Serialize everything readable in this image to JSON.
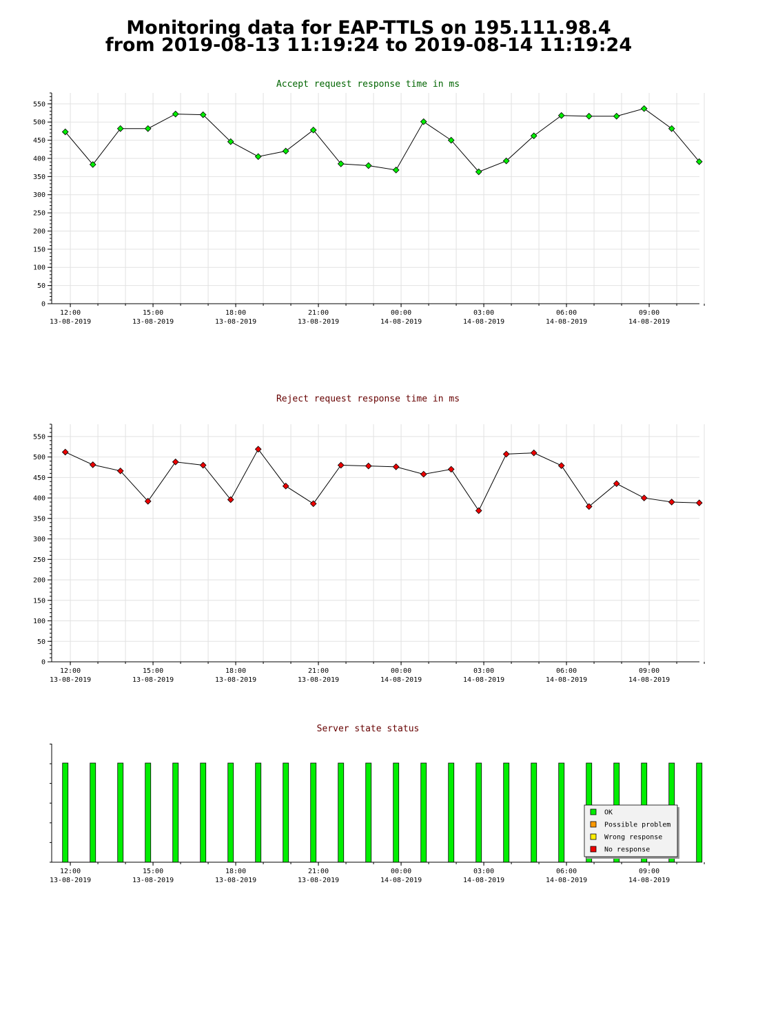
{
  "page": {
    "title_line1": "Monitoring data for EAP-TTLS on 195.111.98.4",
    "title_line2": "from 2019-08-13 11:19:24 to 2019-08-14 11:19:24"
  },
  "x_ticks": [
    {
      "time": "12:00",
      "date": "13-08-2019"
    },
    {
      "time": "15:00",
      "date": "13-08-2019"
    },
    {
      "time": "18:00",
      "date": "13-08-2019"
    },
    {
      "time": "21:00",
      "date": "13-08-2019"
    },
    {
      "time": "00:00",
      "date": "14-08-2019"
    },
    {
      "time": "03:00",
      "date": "14-08-2019"
    },
    {
      "time": "06:00",
      "date": "14-08-2019"
    },
    {
      "time": "09:00",
      "date": "14-08-2019"
    }
  ],
  "colors": {
    "accept_title": "#006400",
    "reject_title": "#660000",
    "status_title": "#660000",
    "accept_marker": "#00ee00",
    "reject_marker": "#ee0000",
    "ok": "#00ee00",
    "possible_problem": "#ff9900",
    "wrong_response": "#ffee00",
    "no_response": "#ee0000"
  },
  "chart_data": [
    {
      "type": "line",
      "title": "Accept request response time in ms",
      "x": [
        "2019-08-13 11:49",
        "2019-08-13 12:49",
        "2019-08-13 13:49",
        "2019-08-13 14:49",
        "2019-08-13 15:49",
        "2019-08-13 16:49",
        "2019-08-13 17:49",
        "2019-08-13 18:49",
        "2019-08-13 19:49",
        "2019-08-13 20:49",
        "2019-08-13 21:49",
        "2019-08-13 22:49",
        "2019-08-13 23:49",
        "2019-08-14 00:49",
        "2019-08-14 01:49",
        "2019-08-14 02:49",
        "2019-08-14 03:49",
        "2019-08-14 04:49",
        "2019-08-14 05:49",
        "2019-08-14 06:49",
        "2019-08-14 07:49",
        "2019-08-14 08:49",
        "2019-08-14 09:49",
        "2019-08-14 10:49"
      ],
      "values": [
        473,
        383,
        482,
        482,
        522,
        520,
        446,
        405,
        420,
        478,
        385,
        380,
        368,
        501,
        450,
        363,
        393,
        462,
        518,
        516,
        516,
        537,
        482,
        391
      ],
      "ylim": [
        0,
        580
      ],
      "yticks": [
        0,
        50,
        100,
        150,
        200,
        250,
        300,
        350,
        400,
        450,
        500,
        550
      ],
      "grid": true
    },
    {
      "type": "line",
      "title": "Reject request response time in ms",
      "x": [
        "2019-08-13 11:49",
        "2019-08-13 12:49",
        "2019-08-13 13:49",
        "2019-08-13 14:49",
        "2019-08-13 15:49",
        "2019-08-13 16:49",
        "2019-08-13 17:49",
        "2019-08-13 18:49",
        "2019-08-13 19:49",
        "2019-08-13 20:49",
        "2019-08-13 21:49",
        "2019-08-13 22:49",
        "2019-08-13 23:49",
        "2019-08-14 00:49",
        "2019-08-14 01:49",
        "2019-08-14 02:49",
        "2019-08-14 03:49",
        "2019-08-14 04:49",
        "2019-08-14 05:49",
        "2019-08-14 06:49",
        "2019-08-14 07:49",
        "2019-08-14 08:49",
        "2019-08-14 09:49",
        "2019-08-14 10:49"
      ],
      "values": [
        512,
        481,
        466,
        392,
        488,
        480,
        396,
        519,
        429,
        386,
        480,
        478,
        476,
        458,
        470,
        369,
        507,
        510,
        479,
        379,
        435,
        400,
        390,
        388
      ],
      "ylim": [
        0,
        580
      ],
      "yticks": [
        0,
        50,
        100,
        150,
        200,
        250,
        300,
        350,
        400,
        450,
        500,
        550
      ],
      "grid": true
    },
    {
      "type": "bar",
      "title": "Server state status",
      "x": [
        "2019-08-13 11:49",
        "2019-08-13 12:49",
        "2019-08-13 13:49",
        "2019-08-13 14:49",
        "2019-08-13 15:49",
        "2019-08-13 16:49",
        "2019-08-13 17:49",
        "2019-08-13 18:49",
        "2019-08-13 19:49",
        "2019-08-13 20:49",
        "2019-08-13 21:49",
        "2019-08-13 22:49",
        "2019-08-13 23:49",
        "2019-08-14 00:49",
        "2019-08-14 01:49",
        "2019-08-14 02:49",
        "2019-08-14 03:49",
        "2019-08-14 04:49",
        "2019-08-14 05:49",
        "2019-08-14 06:49",
        "2019-08-14 07:49",
        "2019-08-14 08:49",
        "2019-08-14 09:49",
        "2019-08-14 10:49"
      ],
      "states": [
        "OK",
        "OK",
        "OK",
        "OK",
        "OK",
        "OK",
        "OK",
        "OK",
        "OK",
        "OK",
        "OK",
        "OK",
        "OK",
        "OK",
        "OK",
        "OK",
        "OK",
        "OK",
        "OK",
        "OK",
        "OK",
        "OK",
        "OK",
        "OK"
      ],
      "legend": [
        "OK",
        "Possible problem",
        "Wrong response",
        "No response"
      ],
      "legend_position": "bottom-right",
      "grid": false
    }
  ]
}
